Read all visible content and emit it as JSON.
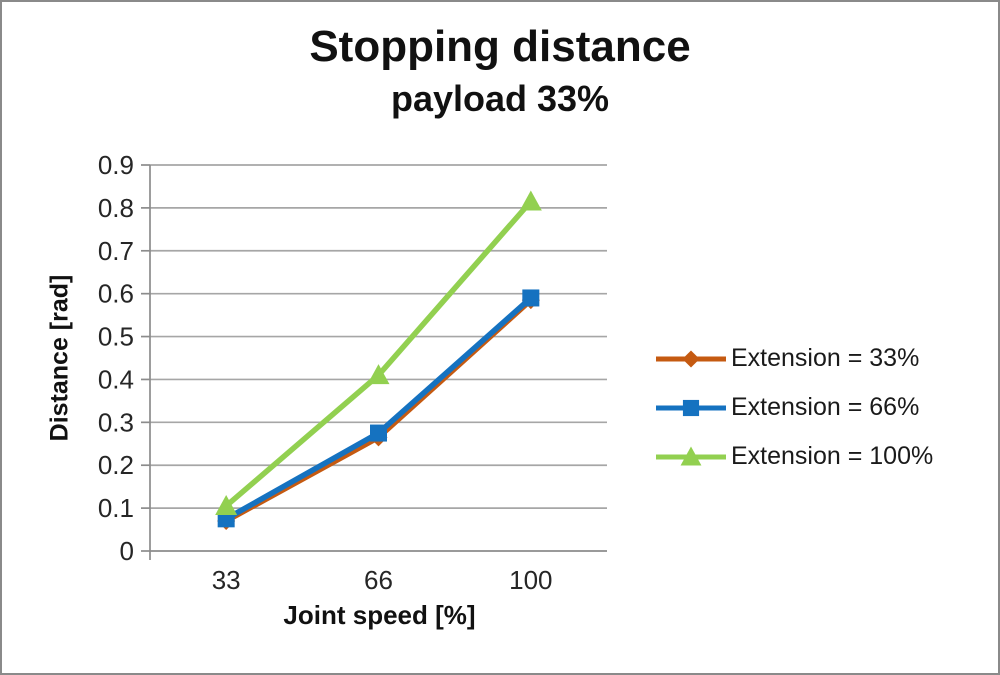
{
  "chart_data": {
    "type": "line",
    "title": "Stopping distance",
    "subtitle": "payload 33%",
    "xlabel": "Joint speed [%]",
    "ylabel": "Distance [rad]",
    "categories": [
      "33",
      "66",
      "100"
    ],
    "series": [
      {
        "name": "Extension = 33%",
        "color": "#C55A11",
        "marker": "diamond",
        "values": [
          0.07,
          0.265,
          0.585
        ]
      },
      {
        "name": "Extension = 66%",
        "color": "#1572C0",
        "marker": "square",
        "values": [
          0.075,
          0.275,
          0.59
        ]
      },
      {
        "name": "Extension = 100%",
        "color": "#92D050",
        "marker": "triangle",
        "values": [
          0.105,
          0.41,
          0.815
        ]
      }
    ],
    "ylim": [
      0,
      0.9
    ],
    "yticks": [
      "0",
      "0.1",
      "0.2",
      "0.3",
      "0.4",
      "0.5",
      "0.6",
      "0.7",
      "0.8",
      "0.9"
    ],
    "grid": true,
    "grid_color": "#A6A6A6",
    "axis_color": "#8C8C8C",
    "legend_position": "right"
  }
}
